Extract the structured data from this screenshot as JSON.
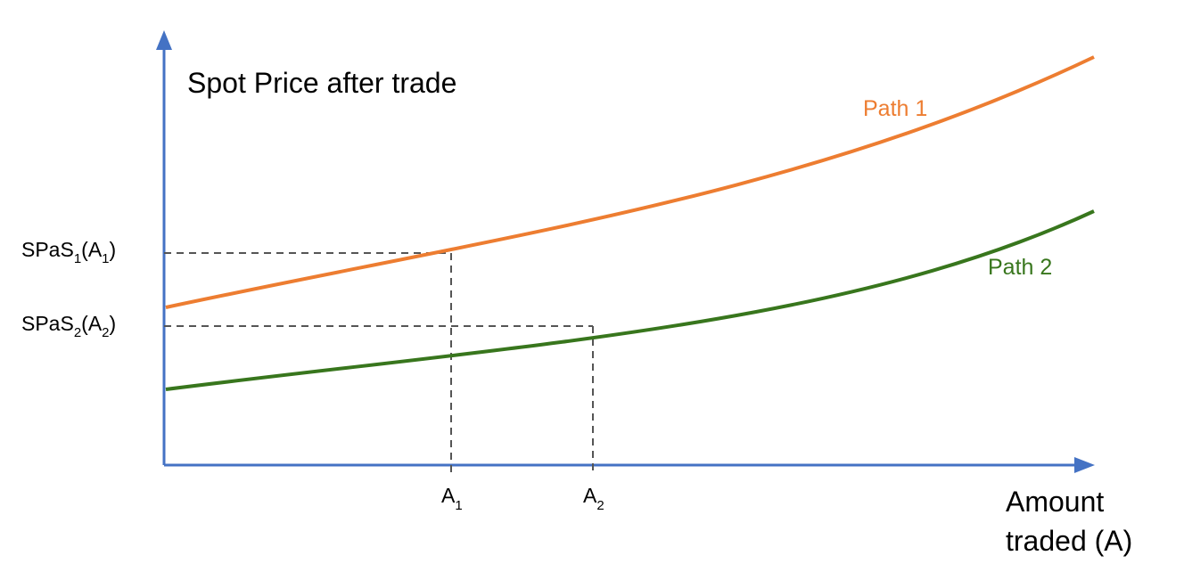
{
  "diagram": {
    "y_axis_label": "Spot Price after trade",
    "x_axis_label_line1": "Amount",
    "x_axis_label_line2": "traded (A)",
    "path1_label": "Path 1",
    "path2_label": "Path 2",
    "y_tick1": {
      "base": "SPaS",
      "sub": "1",
      "open": "(A",
      "sub2": "1",
      "close": ")"
    },
    "y_tick2": {
      "base": "SPaS",
      "sub": "2",
      "open": "(A",
      "sub2": "2",
      "close": ")"
    },
    "x_tick1": {
      "base": "A",
      "sub": "1"
    },
    "x_tick2": {
      "base": "A",
      "sub": "2"
    },
    "colors": {
      "axis": "#4472c4",
      "path1": "#ed7d31",
      "path2": "#38761d",
      "guide": "#555555",
      "text": "#000000"
    }
  }
}
